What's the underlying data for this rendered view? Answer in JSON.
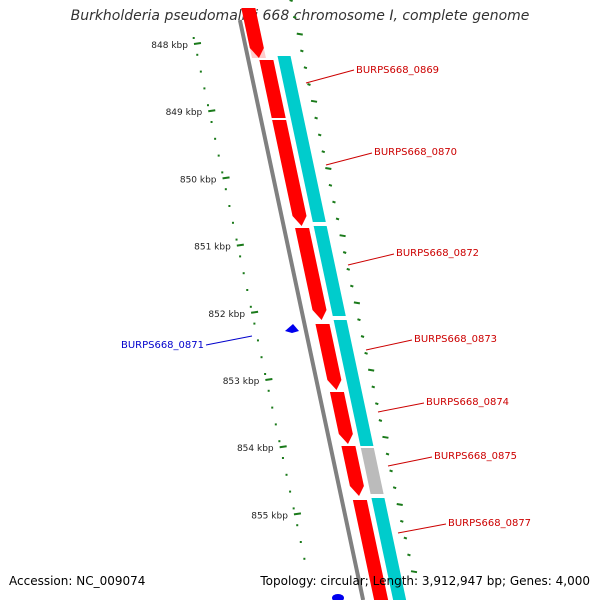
{
  "title": "Burkholderia pseudomallei 668 chromosome I, complete genome",
  "accession": "Accession: NC_009074",
  "summary": "Topology: circular; Length: 3,912,947 bp; Genes: 4,000",
  "colors": {
    "cds": "#ff0000",
    "cds_light": "#ffcccc",
    "rna": "#00cccc",
    "rna_grey": "#bbbbbb",
    "backbone": "#808080",
    "tick": "#1a7a1a",
    "label_red": "#cc0000",
    "label_blue": "#0000cc",
    "gene_blue": "#0000ee"
  },
  "scale_ticks": [
    {
      "label": "848 kbp",
      "kbp": 848
    },
    {
      "label": "849 kbp",
      "kbp": 849
    },
    {
      "label": "850 kbp",
      "kbp": 850
    },
    {
      "label": "851 kbp",
      "kbp": 851
    },
    {
      "label": "852 kbp",
      "kbp": 852
    },
    {
      "label": "853 kbp",
      "kbp": 853
    },
    {
      "label": "854 kbp",
      "kbp": 854
    },
    {
      "label": "855 kbp",
      "kbp": 855
    }
  ],
  "gene_labels": [
    {
      "label": "BURPS668_0869",
      "color": "#cc0000"
    },
    {
      "label": "BURPS668_0870",
      "color": "#cc0000"
    },
    {
      "label": "BURPS668_0872",
      "color": "#cc0000"
    },
    {
      "label": "BURPS668_0873",
      "color": "#cc0000"
    },
    {
      "label": "BURPS668_0874",
      "color": "#cc0000"
    },
    {
      "label": "BURPS668_0875",
      "color": "#cc0000"
    },
    {
      "label": "BURPS668_0877",
      "color": "#cc0000"
    },
    {
      "label": "BURPS668_0871",
      "color": "#0000cc"
    }
  ]
}
